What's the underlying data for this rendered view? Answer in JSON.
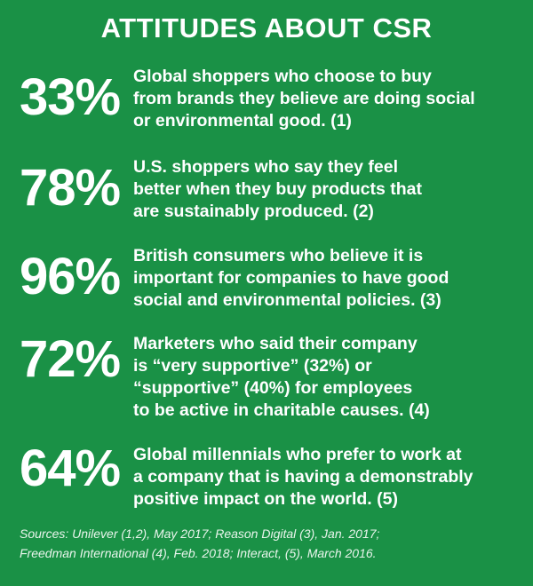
{
  "title": "ATTITUDES ABOUT CSR",
  "stats": [
    {
      "percent": "33%",
      "lines": [
        "Global shoppers who choose to buy",
        "from brands they believe are doing social",
        "or environmental good. (1)"
      ]
    },
    {
      "percent": "78%",
      "lines": [
        "U.S. shoppers who say they feel",
        "better when they buy products that",
        "are sustainably produced. (2)"
      ]
    },
    {
      "percent": "96%",
      "lines": [
        "British consumers who believe it is",
        "important for companies to have good",
        "social and environmental policies. (3)"
      ]
    },
    {
      "percent": "72%",
      "lines": [
        "Marketers who said their company",
        "is “very supportive” (32%) or",
        "“supportive” (40%) for employees",
        "to be active in charitable causes. (4)"
      ]
    },
    {
      "percent": "64%",
      "lines": [
        "Global millennials who prefer to work at",
        "a company that is having a demonstrably",
        "positive impact on the world. (5)"
      ]
    }
  ],
  "sources": [
    "Sources: Unilever (1,2), May 2017; Reason Digital (3), Jan. 2017;",
    "Freedman International (4), Feb. 2018; Interact, (5), March 2016."
  ],
  "colors": {
    "background": "#1a9146",
    "text": "#ffffff"
  }
}
